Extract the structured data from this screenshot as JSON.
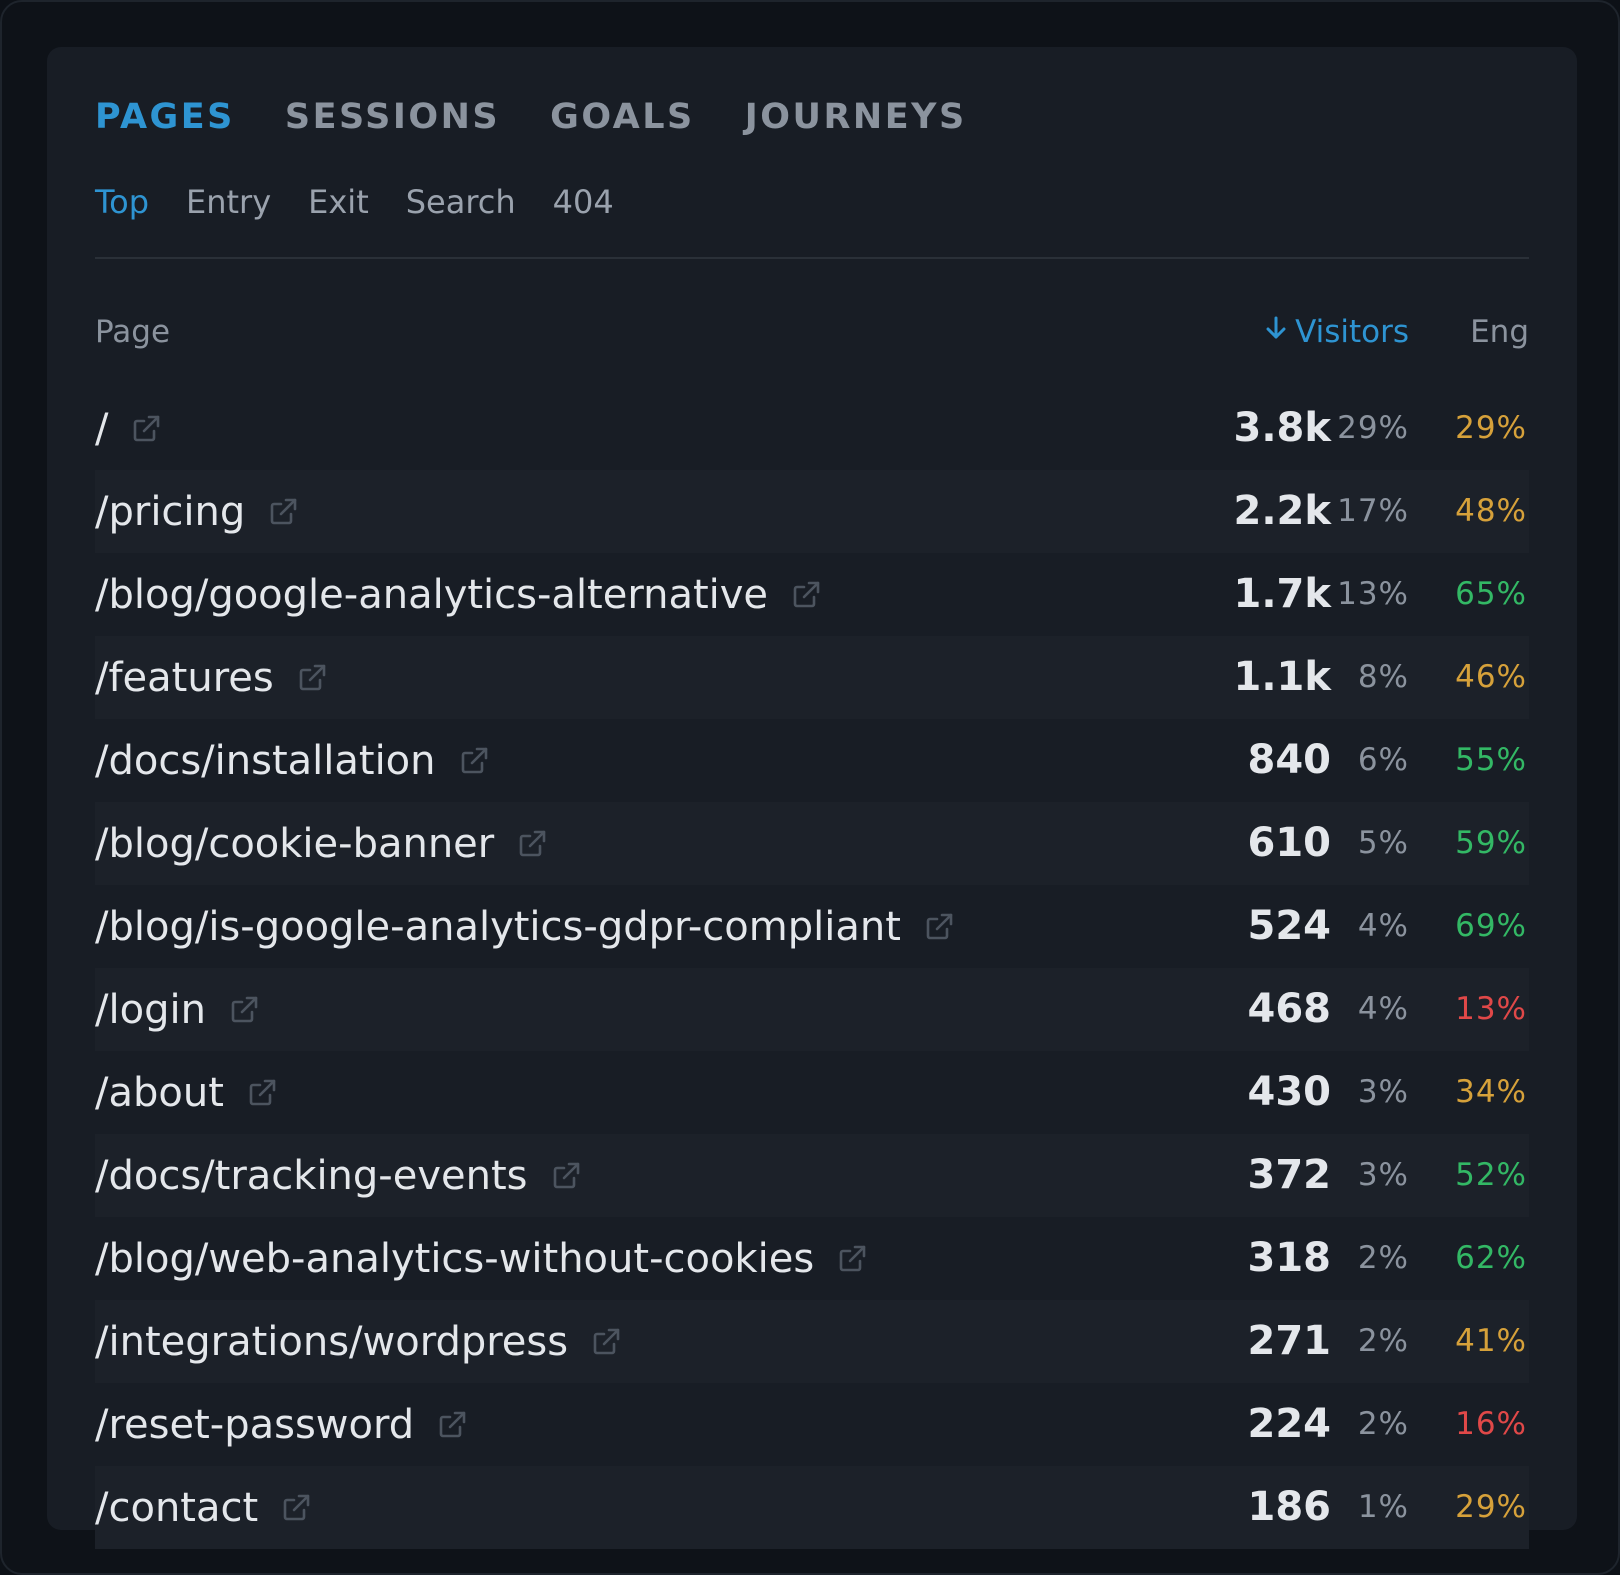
{
  "tabs": [
    "PAGES",
    "SESSIONS",
    "GOALS",
    "JOURNEYS"
  ],
  "active_tab": 0,
  "subtabs": [
    "Top",
    "Entry",
    "Exit",
    "Search",
    "404"
  ],
  "active_subtab": 0,
  "table": {
    "headers": {
      "page": "Page",
      "visitors": "Visitors",
      "eng": "Eng"
    },
    "sort": "visitors-desc",
    "rows": [
      {
        "page": "/",
        "visitors": "3.8k",
        "pct": "29%",
        "eng": "29%",
        "eng_color": "#d6a13a"
      },
      {
        "page": "/pricing",
        "visitors": "2.2k",
        "pct": "17%",
        "eng": "48%",
        "eng_color": "#d6a13a"
      },
      {
        "page": "/blog/google-analytics-alternative",
        "visitors": "1.7k",
        "pct": "13%",
        "eng": "65%",
        "eng_color": "#33b865"
      },
      {
        "page": "/features",
        "visitors": "1.1k",
        "pct": "8%",
        "eng": "46%",
        "eng_color": "#d6a13a"
      },
      {
        "page": "/docs/installation",
        "visitors": "840",
        "pct": "6%",
        "eng": "55%",
        "eng_color": "#33b865"
      },
      {
        "page": "/blog/cookie-banner",
        "visitors": "610",
        "pct": "5%",
        "eng": "59%",
        "eng_color": "#33b865"
      },
      {
        "page": "/blog/is-google-analytics-gdpr-compliant",
        "visitors": "524",
        "pct": "4%",
        "eng": "69%",
        "eng_color": "#33b865"
      },
      {
        "page": "/login",
        "visitors": "468",
        "pct": "4%",
        "eng": "13%",
        "eng_color": "#e04848"
      },
      {
        "page": "/about",
        "visitors": "430",
        "pct": "3%",
        "eng": "34%",
        "eng_color": "#d6a13a"
      },
      {
        "page": "/docs/tracking-events",
        "visitors": "372",
        "pct": "3%",
        "eng": "52%",
        "eng_color": "#33b865"
      },
      {
        "page": "/blog/web-analytics-without-cookies",
        "visitors": "318",
        "pct": "2%",
        "eng": "62%",
        "eng_color": "#33b865"
      },
      {
        "page": "/integrations/wordpress",
        "visitors": "271",
        "pct": "2%",
        "eng": "41%",
        "eng_color": "#d6a13a"
      },
      {
        "page": "/reset-password",
        "visitors": "224",
        "pct": "2%",
        "eng": "16%",
        "eng_color": "#e04848"
      },
      {
        "page": "/contact",
        "visitors": "186",
        "pct": "1%",
        "eng": "29%",
        "eng_color": "#d6a13a"
      }
    ]
  },
  "colors": {
    "accent": "#2e94d2",
    "eng_good": "#33b865",
    "eng_mid": "#d6a13a",
    "eng_bad": "#e04848"
  },
  "icons": {
    "sort": "arrow-down-icon",
    "row_link": "external-link-icon"
  }
}
